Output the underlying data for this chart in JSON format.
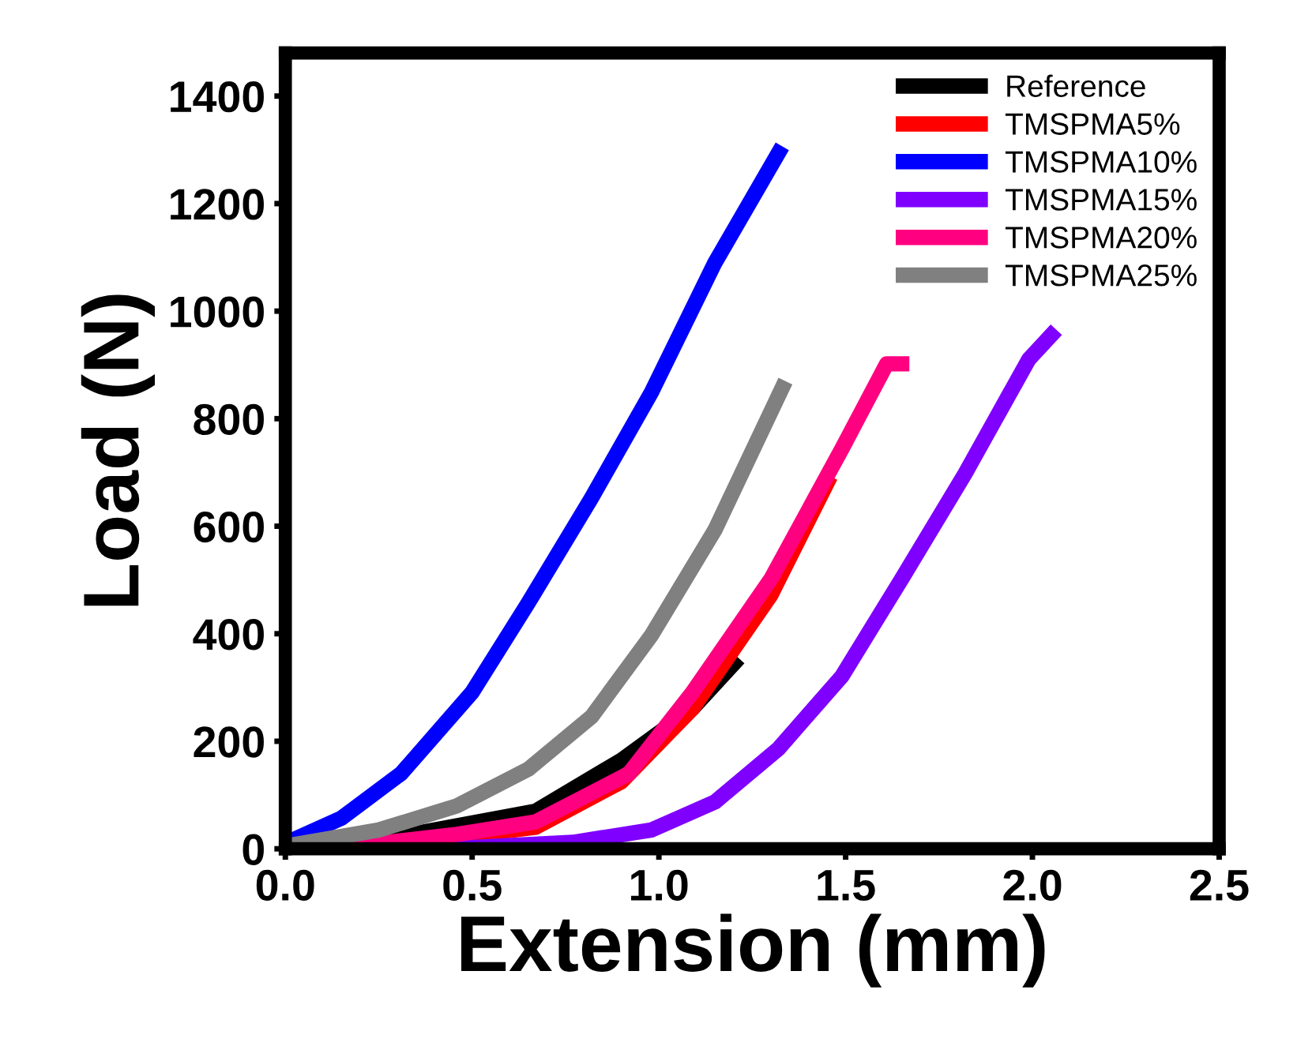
{
  "chart_data": {
    "type": "line",
    "xlabel": "Extension (mm)",
    "ylabel": "Load (N)",
    "xlim": [
      0,
      2.5
    ],
    "ylim": [
      0,
      1480
    ],
    "xticks": [
      {
        "value": 0,
        "label": "0.0"
      },
      0.5,
      {
        "value": 1,
        "label": "1.0"
      },
      1.5,
      {
        "value": 2,
        "label": "2.0"
      },
      2.5
    ],
    "yticks": [
      0,
      200,
      400,
      600,
      800,
      1000,
      1200,
      1400
    ],
    "grid": false,
    "legend": "top right",
    "line_style": "solid",
    "series": [
      {
        "name": "Reference",
        "color": "#000000",
        "x": [
          0,
          0.36,
          0.67,
          0.9,
          1.09,
          1.2
        ],
        "values": [
          5,
          30,
          70,
          165,
          261,
          344
        ]
      },
      {
        "name": "TMSPMA5%",
        "color": "#ff0000",
        "x": [
          0.19,
          0.46,
          0.67,
          0.9,
          1.09,
          1.3,
          1.45
        ],
        "values": [
          3,
          22,
          40,
          125,
          261,
          472,
          680
        ]
      },
      {
        "name": "TMSPMA10%",
        "color": "#0000ff",
        "x": [
          0,
          0.15,
          0.31,
          0.5,
          0.65,
          0.82,
          0.98,
          1.15,
          1.32
        ],
        "values": [
          10,
          57,
          140,
          291,
          457,
          653,
          849,
          1090,
          1294
        ]
      },
      {
        "name": "TMSPMA15%",
        "color": "#7f00ff",
        "x": [
          0.48,
          0.77,
          0.98,
          1.15,
          1.32,
          1.49,
          1.65,
          1.82,
          1.99,
          2.05
        ],
        "values": [
          2,
          12,
          35,
          87,
          186,
          321,
          502,
          698,
          910,
          955
        ]
      },
      {
        "name": "TMSPMA20%",
        "color": "#ff0080",
        "x": [
          0.19,
          0.46,
          0.67,
          0.92,
          1.09,
          1.3,
          1.49,
          1.61,
          1.65
        ],
        "values": [
          5,
          27,
          50,
          140,
          291,
          502,
          744,
          902,
          902
        ]
      },
      {
        "name": "TMSPMA25%",
        "color": "#808080",
        "x": [
          0,
          0.25,
          0.46,
          0.65,
          0.82,
          0.98,
          1.15,
          1.33
        ],
        "values": [
          5,
          35,
          80,
          148,
          246,
          397,
          593,
          857
        ]
      }
    ]
  }
}
